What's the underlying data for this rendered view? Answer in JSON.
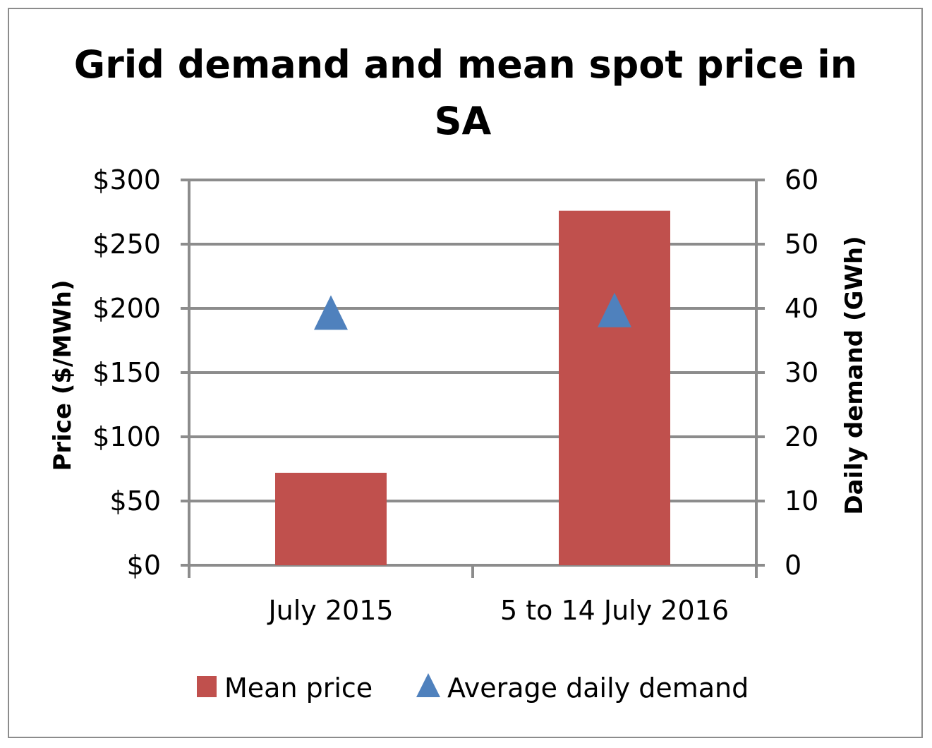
{
  "chart_data": {
    "type": "bar",
    "title": "Grid demand and mean spot price in SA",
    "title_lines": [
      "Grid demand and  mean spot price in",
      "SA"
    ],
    "categories": [
      "July 2015",
      "5 to 14 July 2016"
    ],
    "ylabel": "Price ($/MWh)",
    "y2label": "Daily demand (GWh)",
    "ylim": [
      0,
      300
    ],
    "y2lim": [
      0,
      60
    ],
    "yticks": [
      "$0",
      "$50",
      "$100",
      "$150",
      "$200",
      "$250",
      "$300"
    ],
    "y2ticks": [
      "0",
      "10",
      "20",
      "30",
      "40",
      "50",
      "60"
    ],
    "grid": true,
    "legend_position": "bottom",
    "series": [
      {
        "name": "Mean price",
        "kind": "bar",
        "axis": "left",
        "color": "#c0504d",
        "values": [
          72,
          276
        ]
      },
      {
        "name": "Average daily demand",
        "kind": "marker-triangle",
        "axis": "right",
        "color": "#4f81bd",
        "values": [
          39.3,
          39.7
        ]
      }
    ]
  }
}
